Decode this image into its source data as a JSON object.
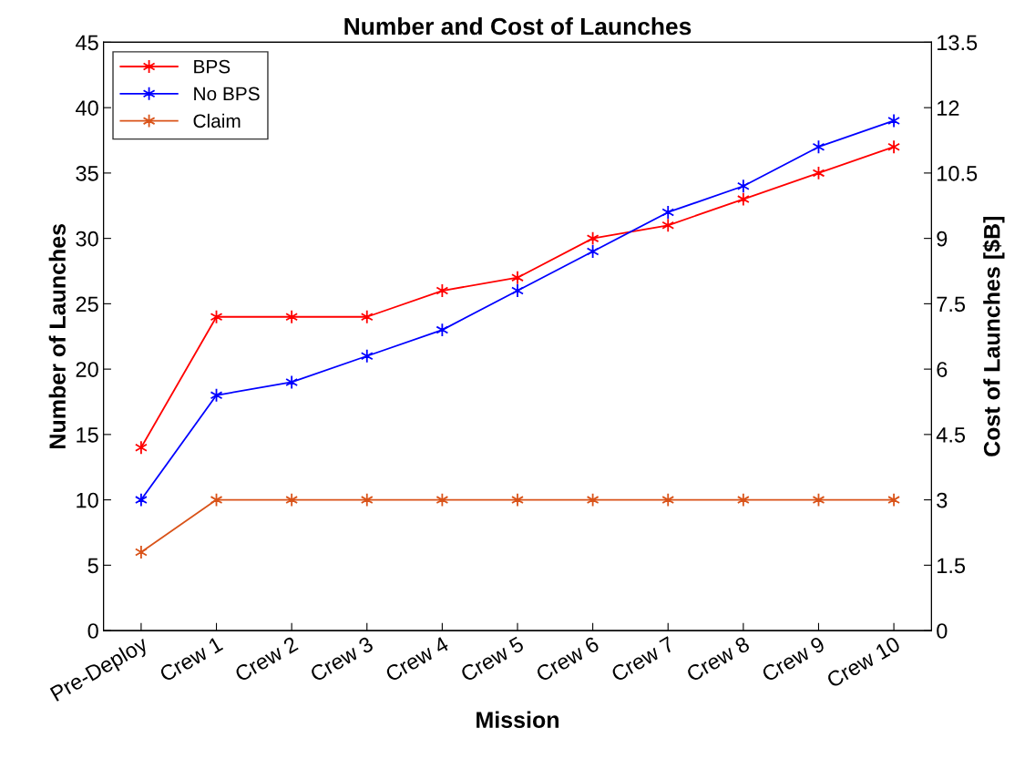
{
  "chart_data": {
    "type": "line",
    "title": "Number and Cost of Launches",
    "xlabel": "Mission",
    "ylabel": "Number of Launches",
    "y2label": "Cost of Launches [$B]",
    "categories": [
      "Pre-Deploy",
      "Crew 1",
      "Crew 2",
      "Crew 3",
      "Crew 4",
      "Crew 5",
      "Crew 6",
      "Crew 7",
      "Crew 8",
      "Crew 9",
      "Crew 10"
    ],
    "series": [
      {
        "name": "BPS",
        "color": "#ff0000",
        "values": [
          14,
          24,
          24,
          24,
          26,
          27,
          30,
          31,
          33,
          35,
          37
        ]
      },
      {
        "name": "No BPS",
        "color": "#0000ff",
        "values": [
          10,
          18,
          19,
          21,
          23,
          26,
          29,
          32,
          34,
          37,
          39
        ]
      },
      {
        "name": "Claim",
        "color": "#d95319",
        "values": [
          6,
          10,
          10,
          10,
          10,
          10,
          10,
          10,
          10,
          10,
          10
        ]
      }
    ],
    "ylim": [
      0,
      45
    ],
    "yticks": [
      0,
      5,
      10,
      15,
      20,
      25,
      30,
      35,
      40,
      45
    ],
    "y2lim": [
      0,
      13.5
    ],
    "y2ticks": [
      0,
      1.5,
      3,
      4.5,
      6,
      7.5,
      9,
      10.5,
      12,
      13.5
    ],
    "marker": "cross",
    "line_style": "solid",
    "grid": false,
    "legend": "top left"
  }
}
